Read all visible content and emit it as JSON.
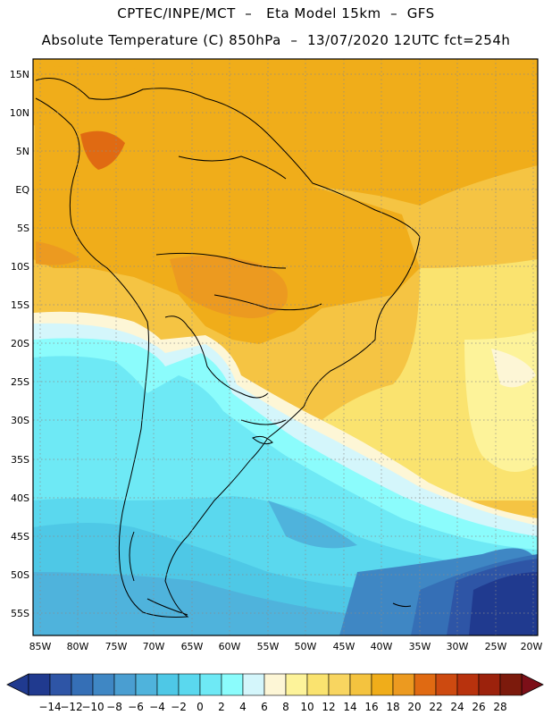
{
  "header": {
    "line1": "CPTEC/INPE/MCT  –   Eta Model 15km  –  GFS",
    "line2": "Absolute Temperature (C) 850hPa  –  13/07/2020 12UTC fct=254h"
  },
  "map": {
    "lat_labels": [
      "15N",
      "10N",
      "5N",
      "EQ",
      "5S",
      "10S",
      "15S",
      "20S",
      "25S",
      "30S",
      "35S",
      "40S",
      "45S",
      "50S",
      "55S"
    ],
    "lon_labels": [
      "85W",
      "80W",
      "75W",
      "70W",
      "65W",
      "60W",
      "55W",
      "50W",
      "45W",
      "40W",
      "35W",
      "30W",
      "25W",
      "20W"
    ],
    "grid_lines": "dotted"
  },
  "colorbar": {
    "tick_labels": [
      "-14",
      "-12",
      "-10",
      "-8",
      "-6",
      "-4",
      "-2",
      "0",
      "2",
      "4",
      "6",
      "8",
      "10",
      "12",
      "14",
      "16",
      "18",
      "20",
      "22",
      "24",
      "26",
      "28"
    ],
    "colors": [
      "#203a8f",
      "#2e55a6",
      "#356fb6",
      "#3f87c4",
      "#4a9ed1",
      "#4fb3dc",
      "#4ec8e6",
      "#5ad8ee",
      "#6ee9f5",
      "#8bfcfc",
      "#d4f6fb",
      "#fdf6d6",
      "#fdf39a",
      "#fae36f",
      "#f8d560",
      "#f4c33f",
      "#f0ad1a",
      "#ec9a20",
      "#e06a12",
      "#cd4a10",
      "#b8320d",
      "#9c220c",
      "#7c1a0c"
    ],
    "low_arrow_color": "#203a8f",
    "high_arrow_color": "#7c0f18"
  }
}
